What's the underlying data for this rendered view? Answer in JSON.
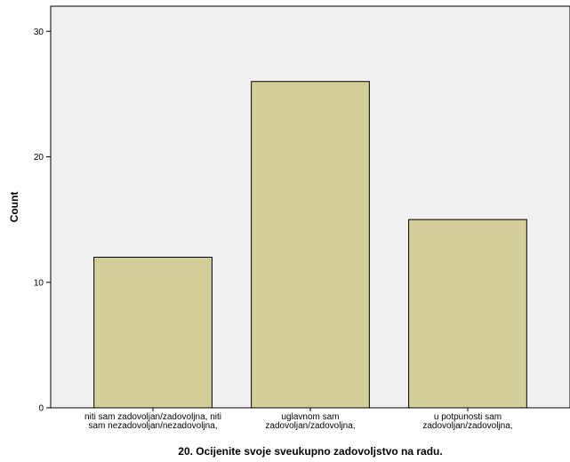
{
  "chart_data": {
    "type": "bar",
    "xlabel": "20. Ocijenite svoje sveukupno zadovoljstvo na radu.",
    "ylabel": "Count",
    "ylim": [
      0,
      32
    ],
    "yticks": [
      0,
      10,
      20,
      30
    ],
    "grid": false,
    "categories": [
      [
        "niti sam zadovoljan/zadovoljna, niti",
        "sam nezadovoljan/nezadovoljna,"
      ],
      [
        "uglavnom sam",
        "zadovoljan/zadovoljna,"
      ],
      [
        "u potpunosti sam",
        "zadovoljan/zadovoljna,"
      ]
    ],
    "values": [
      12,
      26,
      15
    ],
    "colors": {
      "bar_fill": "#d3cf99",
      "bar_stroke": "#000000",
      "plot_background": "#f0f0f0"
    }
  }
}
